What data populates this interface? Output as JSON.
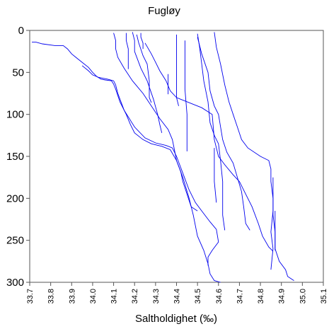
{
  "chart_data": {
    "type": "line",
    "title": "Fugløy",
    "xlabel": "Saltholdighet (‰)",
    "ylabel": "",
    "xlim": [
      33.7,
      35.1
    ],
    "ylim": [
      300,
      0
    ],
    "y_inverted": true,
    "x_ticks": [
      "33.7",
      "33.8",
      "33.9",
      "34.0",
      "34.1",
      "34.2",
      "34.3",
      "34.4",
      "34.5",
      "34.6",
      "34.7",
      "34.8",
      "34.9",
      "35.0",
      "35.1"
    ],
    "y_ticks": [
      "0",
      "50",
      "100",
      "150",
      "200",
      "250",
      "300"
    ],
    "line_color": "#0000ee",
    "grid": false,
    "legend": "none",
    "series": [
      {
        "points": [
          [
            33.71,
            14
          ],
          [
            33.73,
            14
          ],
          [
            33.76,
            16
          ],
          [
            33.82,
            18
          ],
          [
            33.86,
            18
          ],
          [
            33.88,
            22
          ],
          [
            33.9,
            28
          ],
          [
            33.92,
            32
          ],
          [
            33.95,
            38
          ],
          [
            33.98,
            44
          ],
          [
            34.0,
            50
          ],
          [
            34.02,
            55
          ],
          [
            34.04,
            58
          ],
          [
            34.06,
            59
          ],
          [
            34.09,
            60
          ],
          [
            34.1,
            64
          ],
          [
            34.11,
            70
          ],
          [
            34.13,
            85
          ],
          [
            34.16,
            100
          ],
          [
            34.18,
            112
          ],
          [
            34.2,
            122
          ],
          [
            34.24,
            130
          ],
          [
            34.28,
            135
          ],
          [
            34.33,
            138
          ],
          [
            34.37,
            142
          ],
          [
            34.4,
            155
          ],
          [
            34.43,
            175
          ],
          [
            34.46,
            200
          ],
          [
            34.48,
            220
          ],
          [
            34.5,
            245
          ],
          [
            34.53,
            262
          ],
          [
            34.55,
            278
          ],
          [
            34.56,
            290
          ],
          [
            34.58,
            298
          ],
          [
            34.61,
            300
          ]
        ]
      },
      {
        "points": [
          [
            33.95,
            42
          ],
          [
            33.98,
            48
          ],
          [
            34.0,
            53
          ],
          [
            34.03,
            56
          ],
          [
            34.07,
            58
          ],
          [
            34.1,
            60
          ],
          [
            34.11,
            65
          ],
          [
            34.12,
            75
          ],
          [
            34.15,
            95
          ],
          [
            34.2,
            115
          ],
          [
            34.25,
            128
          ],
          [
            34.3,
            134
          ],
          [
            34.35,
            137
          ],
          [
            34.38,
            140
          ],
          [
            34.4,
            150
          ],
          [
            34.43,
            170
          ],
          [
            34.46,
            190
          ],
          [
            34.49,
            205
          ],
          [
            34.52,
            215
          ],
          [
            34.56,
            228
          ],
          [
            34.59,
            237
          ],
          [
            34.6,
            252
          ],
          [
            34.57,
            262
          ],
          [
            34.55,
            270
          ],
          [
            34.55,
            280
          ]
        ]
      },
      {
        "points": [
          [
            34.1,
            3
          ],
          [
            34.11,
            12
          ],
          [
            34.11,
            22
          ],
          [
            34.12,
            32
          ],
          [
            34.15,
            45
          ],
          [
            34.19,
            60
          ],
          [
            34.24,
            75
          ],
          [
            34.28,
            90
          ],
          [
            34.32,
            105
          ],
          [
            34.36,
            118
          ],
          [
            34.38,
            130
          ],
          [
            34.39,
            142
          ],
          [
            34.4,
            155
          ],
          [
            34.42,
            168
          ],
          [
            34.43,
            180
          ],
          [
            34.45,
            195
          ],
          [
            34.47,
            210
          ],
          [
            34.5,
            215
          ]
        ]
      },
      {
        "points": [
          [
            34.16,
            3
          ],
          [
            34.16,
            12
          ],
          [
            34.17,
            22
          ],
          [
            34.17,
            35
          ],
          [
            34.17,
            46
          ]
        ]
      },
      {
        "points": [
          [
            34.19,
            2
          ],
          [
            34.2,
            12
          ],
          [
            34.2,
            25
          ],
          [
            34.23,
            45
          ],
          [
            34.26,
            60
          ],
          [
            34.29,
            82
          ],
          [
            34.31,
            100
          ],
          [
            34.32,
            112
          ],
          [
            34.33,
            122
          ]
        ]
      },
      {
        "points": [
          [
            34.23,
            3
          ],
          [
            34.23,
            8
          ],
          [
            34.24,
            15
          ],
          [
            34.24,
            22
          ]
        ]
      },
      {
        "points": [
          [
            34.21,
            5
          ],
          [
            34.22,
            15
          ],
          [
            34.24,
            30
          ],
          [
            34.26,
            40
          ],
          [
            34.27,
            60
          ],
          [
            34.27,
            80
          ],
          [
            34.28,
            86
          ]
        ]
      },
      {
        "points": [
          [
            34.25,
            15
          ],
          [
            34.28,
            28
          ],
          [
            34.3,
            38
          ],
          [
            34.32,
            48
          ],
          [
            34.35,
            60
          ],
          [
            34.37,
            72
          ],
          [
            34.4,
            80
          ],
          [
            34.44,
            84
          ],
          [
            34.48,
            88
          ],
          [
            34.52,
            92
          ],
          [
            34.57,
            100
          ],
          [
            34.58,
            130
          ],
          [
            34.6,
            150
          ],
          [
            34.63,
            160
          ],
          [
            34.67,
            172
          ],
          [
            34.7,
            180
          ],
          [
            34.73,
            195
          ],
          [
            34.76,
            210
          ],
          [
            34.79,
            230
          ],
          [
            34.81,
            245
          ],
          [
            34.84,
            258
          ],
          [
            34.86,
            263
          ]
        ]
      },
      {
        "points": [
          [
            34.36,
            52
          ],
          [
            34.36,
            65
          ],
          [
            34.36,
            76
          ]
        ]
      },
      {
        "points": [
          [
            34.4,
            5
          ],
          [
            34.4,
            30
          ],
          [
            34.4,
            55
          ],
          [
            34.4,
            80
          ],
          [
            34.41,
            90
          ]
        ]
      },
      {
        "points": [
          [
            34.44,
            12
          ],
          [
            34.44,
            40
          ],
          [
            34.44,
            70
          ],
          [
            34.45,
            100
          ],
          [
            34.45,
            120
          ],
          [
            34.45,
            144
          ]
        ]
      },
      {
        "points": [
          [
            34.5,
            4
          ],
          [
            34.51,
            20
          ],
          [
            34.52,
            40
          ],
          [
            34.53,
            60
          ],
          [
            34.55,
            85
          ],
          [
            34.56,
            110
          ],
          [
            34.58,
            125
          ],
          [
            34.6,
            135
          ],
          [
            34.61,
            155
          ],
          [
            34.62,
            180
          ],
          [
            34.62,
            205
          ],
          [
            34.62,
            220
          ],
          [
            34.63,
            238
          ]
        ]
      },
      {
        "points": [
          [
            34.5,
            8
          ],
          [
            34.52,
            28
          ],
          [
            34.55,
            50
          ],
          [
            34.56,
            72
          ],
          [
            34.58,
            90
          ],
          [
            34.6,
            100
          ],
          [
            34.62,
            130
          ],
          [
            34.64,
            145
          ],
          [
            34.67,
            158
          ],
          [
            34.69,
            175
          ],
          [
            34.71,
            192
          ],
          [
            34.72,
            210
          ],
          [
            34.73,
            230
          ],
          [
            34.75,
            238
          ]
        ]
      },
      {
        "points": [
          [
            34.58,
            140
          ],
          [
            34.58,
            160
          ],
          [
            34.58,
            180
          ],
          [
            34.59,
            205
          ]
        ]
      },
      {
        "points": [
          [
            34.58,
            2
          ],
          [
            34.59,
            20
          ],
          [
            34.61,
            40
          ],
          [
            34.63,
            65
          ],
          [
            34.65,
            85
          ],
          [
            34.67,
            100
          ],
          [
            34.69,
            115
          ],
          [
            34.71,
            130
          ],
          [
            34.74,
            140
          ],
          [
            34.8,
            150
          ],
          [
            34.84,
            155
          ],
          [
            34.85,
            165
          ],
          [
            34.85,
            180
          ],
          [
            34.86,
            200
          ],
          [
            34.86,
            220
          ],
          [
            34.87,
            240
          ],
          [
            34.87,
            260
          ],
          [
            34.89,
            275
          ],
          [
            34.92,
            285
          ],
          [
            34.93,
            293
          ],
          [
            34.96,
            298
          ]
        ]
      },
      {
        "points": [
          [
            34.86,
            175
          ],
          [
            34.86,
            195
          ],
          [
            34.86,
            215
          ],
          [
            34.85,
            240
          ],
          [
            34.86,
            260
          ],
          [
            34.85,
            285
          ]
        ]
      },
      {
        "points": [
          [
            34.87,
            215
          ],
          [
            34.87,
            240
          ],
          [
            34.87,
            262
          ]
        ]
      }
    ]
  }
}
